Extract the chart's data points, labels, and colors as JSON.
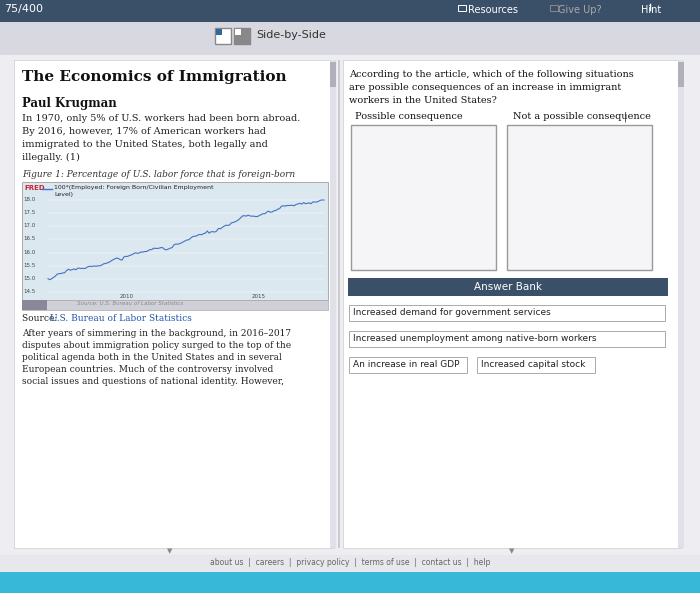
{
  "bg_color": "#c8c8d0",
  "page_bg": "#eeeef2",
  "top_bar_color": "#3a5068",
  "top_bar_text": "75/400",
  "top_right_items": [
    "Resources",
    "Give Up?",
    "Hint"
  ],
  "side_by_side_label": "Side-by-Side",
  "left_panel_bg": "#ffffff",
  "left_title": "The Economics of Immigration",
  "left_author": "Paul Krugman",
  "left_body1": "In 1970, only 5% of U.S. workers had been born abroad.",
  "left_body2": "By 2016, however, 17% of American workers had",
  "left_body3": "immigrated to the United States, both legally and",
  "left_body4": "illegally. (1)",
  "left_figure_caption": "Figure 1: Percentage of U.S. labor force that is foreign-born",
  "left_fred_label": "FRED",
  "left_fred_legend1": "100*(Employed: Foreign Born/Civilian Employment",
  "left_fred_legend2": "Level)",
  "left_chart_yticks": [
    "18.0",
    "17.5",
    "17.0",
    "16.5",
    "16.0",
    "15.5",
    "15.0",
    "14.5"
  ],
  "left_chart_xticks": [
    "2010",
    "2015"
  ],
  "left_source_pre": "Source: ",
  "left_source_link": "U.S. Bureau of Labor Statistics",
  "left_footer_lines": [
    "After years of simmering in the background, in 2016–2017",
    "disputes about immigration policy surged to the top of the",
    "political agenda both in the United States and in several",
    "European countries. Much of the controversy involved",
    "social issues and questions of national identity. However,"
  ],
  "right_panel_bg": "#ffffff",
  "right_question_lines": [
    "According to the article, which of the following situations",
    "are possible consequences of an increase in immigrant",
    "workers in the United States?"
  ],
  "right_col1": "Possible consequence",
  "right_col2": "Not a possible consequence",
  "drop_box_border": "#999999",
  "drop_box_bg": "#f5f5f8",
  "answer_bank_bg": "#3a5068",
  "answer_bank_text": "Answer Bank",
  "answer_bank_text_color": "#ffffff",
  "answer_item1": "Increased demand for government services",
  "answer_item2": "Increased unemployment among native-born workers",
  "answer_item3a": "An increase in real GDP",
  "answer_item3b": "Increased capital stock",
  "answer_item_border": "#aaaaaa",
  "answer_item_bg": "#ffffff",
  "footer_bg": "#e4e4e8",
  "footer_links": [
    "about us",
    "careers",
    "privacy policy",
    "terms of use",
    "contact us",
    "help"
  ],
  "chart_line_color": "#4472c4",
  "chart_bg": "#dce8f0",
  "toolbar_bg": "#d8d8e0",
  "cyan_bar_color": "#38b8d8"
}
